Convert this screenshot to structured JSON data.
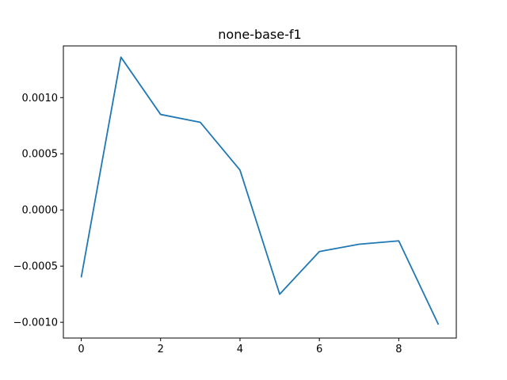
{
  "chart_data": {
    "type": "line",
    "title": "none-base-f1",
    "xlabel": "",
    "ylabel": "",
    "x": [
      0,
      1,
      2,
      3,
      4,
      5,
      6,
      7,
      8,
      9
    ],
    "series": [
      {
        "color": "#1f77b4",
        "values": [
          -0.0006,
          0.00136,
          0.00085,
          0.00078,
          0.000355,
          -0.00075,
          -0.00037,
          -0.000305,
          -0.000275,
          -0.00102
        ]
      }
    ],
    "xlim": [
      -0.45,
      9.45
    ],
    "ylim": [
      -0.00114,
      0.00146
    ],
    "xticks": [
      0,
      2,
      4,
      6,
      8
    ],
    "xtick_labels": [
      "0",
      "2",
      "4",
      "6",
      "8"
    ],
    "yticks": [
      -0.001,
      -0.0005,
      0.0,
      0.0005,
      0.001
    ],
    "ytick_labels": [
      "−0.0010",
      "−0.0005",
      "0.0000",
      "0.0005",
      "0.0010"
    ],
    "grid": false,
    "legend": "none"
  }
}
